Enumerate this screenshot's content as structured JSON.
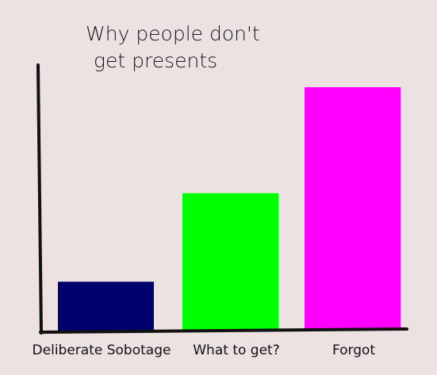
{
  "chart_data": {
    "type": "bar",
    "title_lines": [
      "Why people don't",
      "get presents"
    ],
    "categories": [
      "Deliberate Sobotage",
      "What to get?",
      "Forgot"
    ],
    "values": [
      1.9,
      5.3,
      9.4
    ],
    "ylim": [
      0,
      10.2
    ],
    "colors": [
      "#00006e",
      "#00ff00",
      "#ff00ff"
    ],
    "xlabel": "",
    "ylabel": "",
    "grid": false,
    "legend": "none"
  }
}
